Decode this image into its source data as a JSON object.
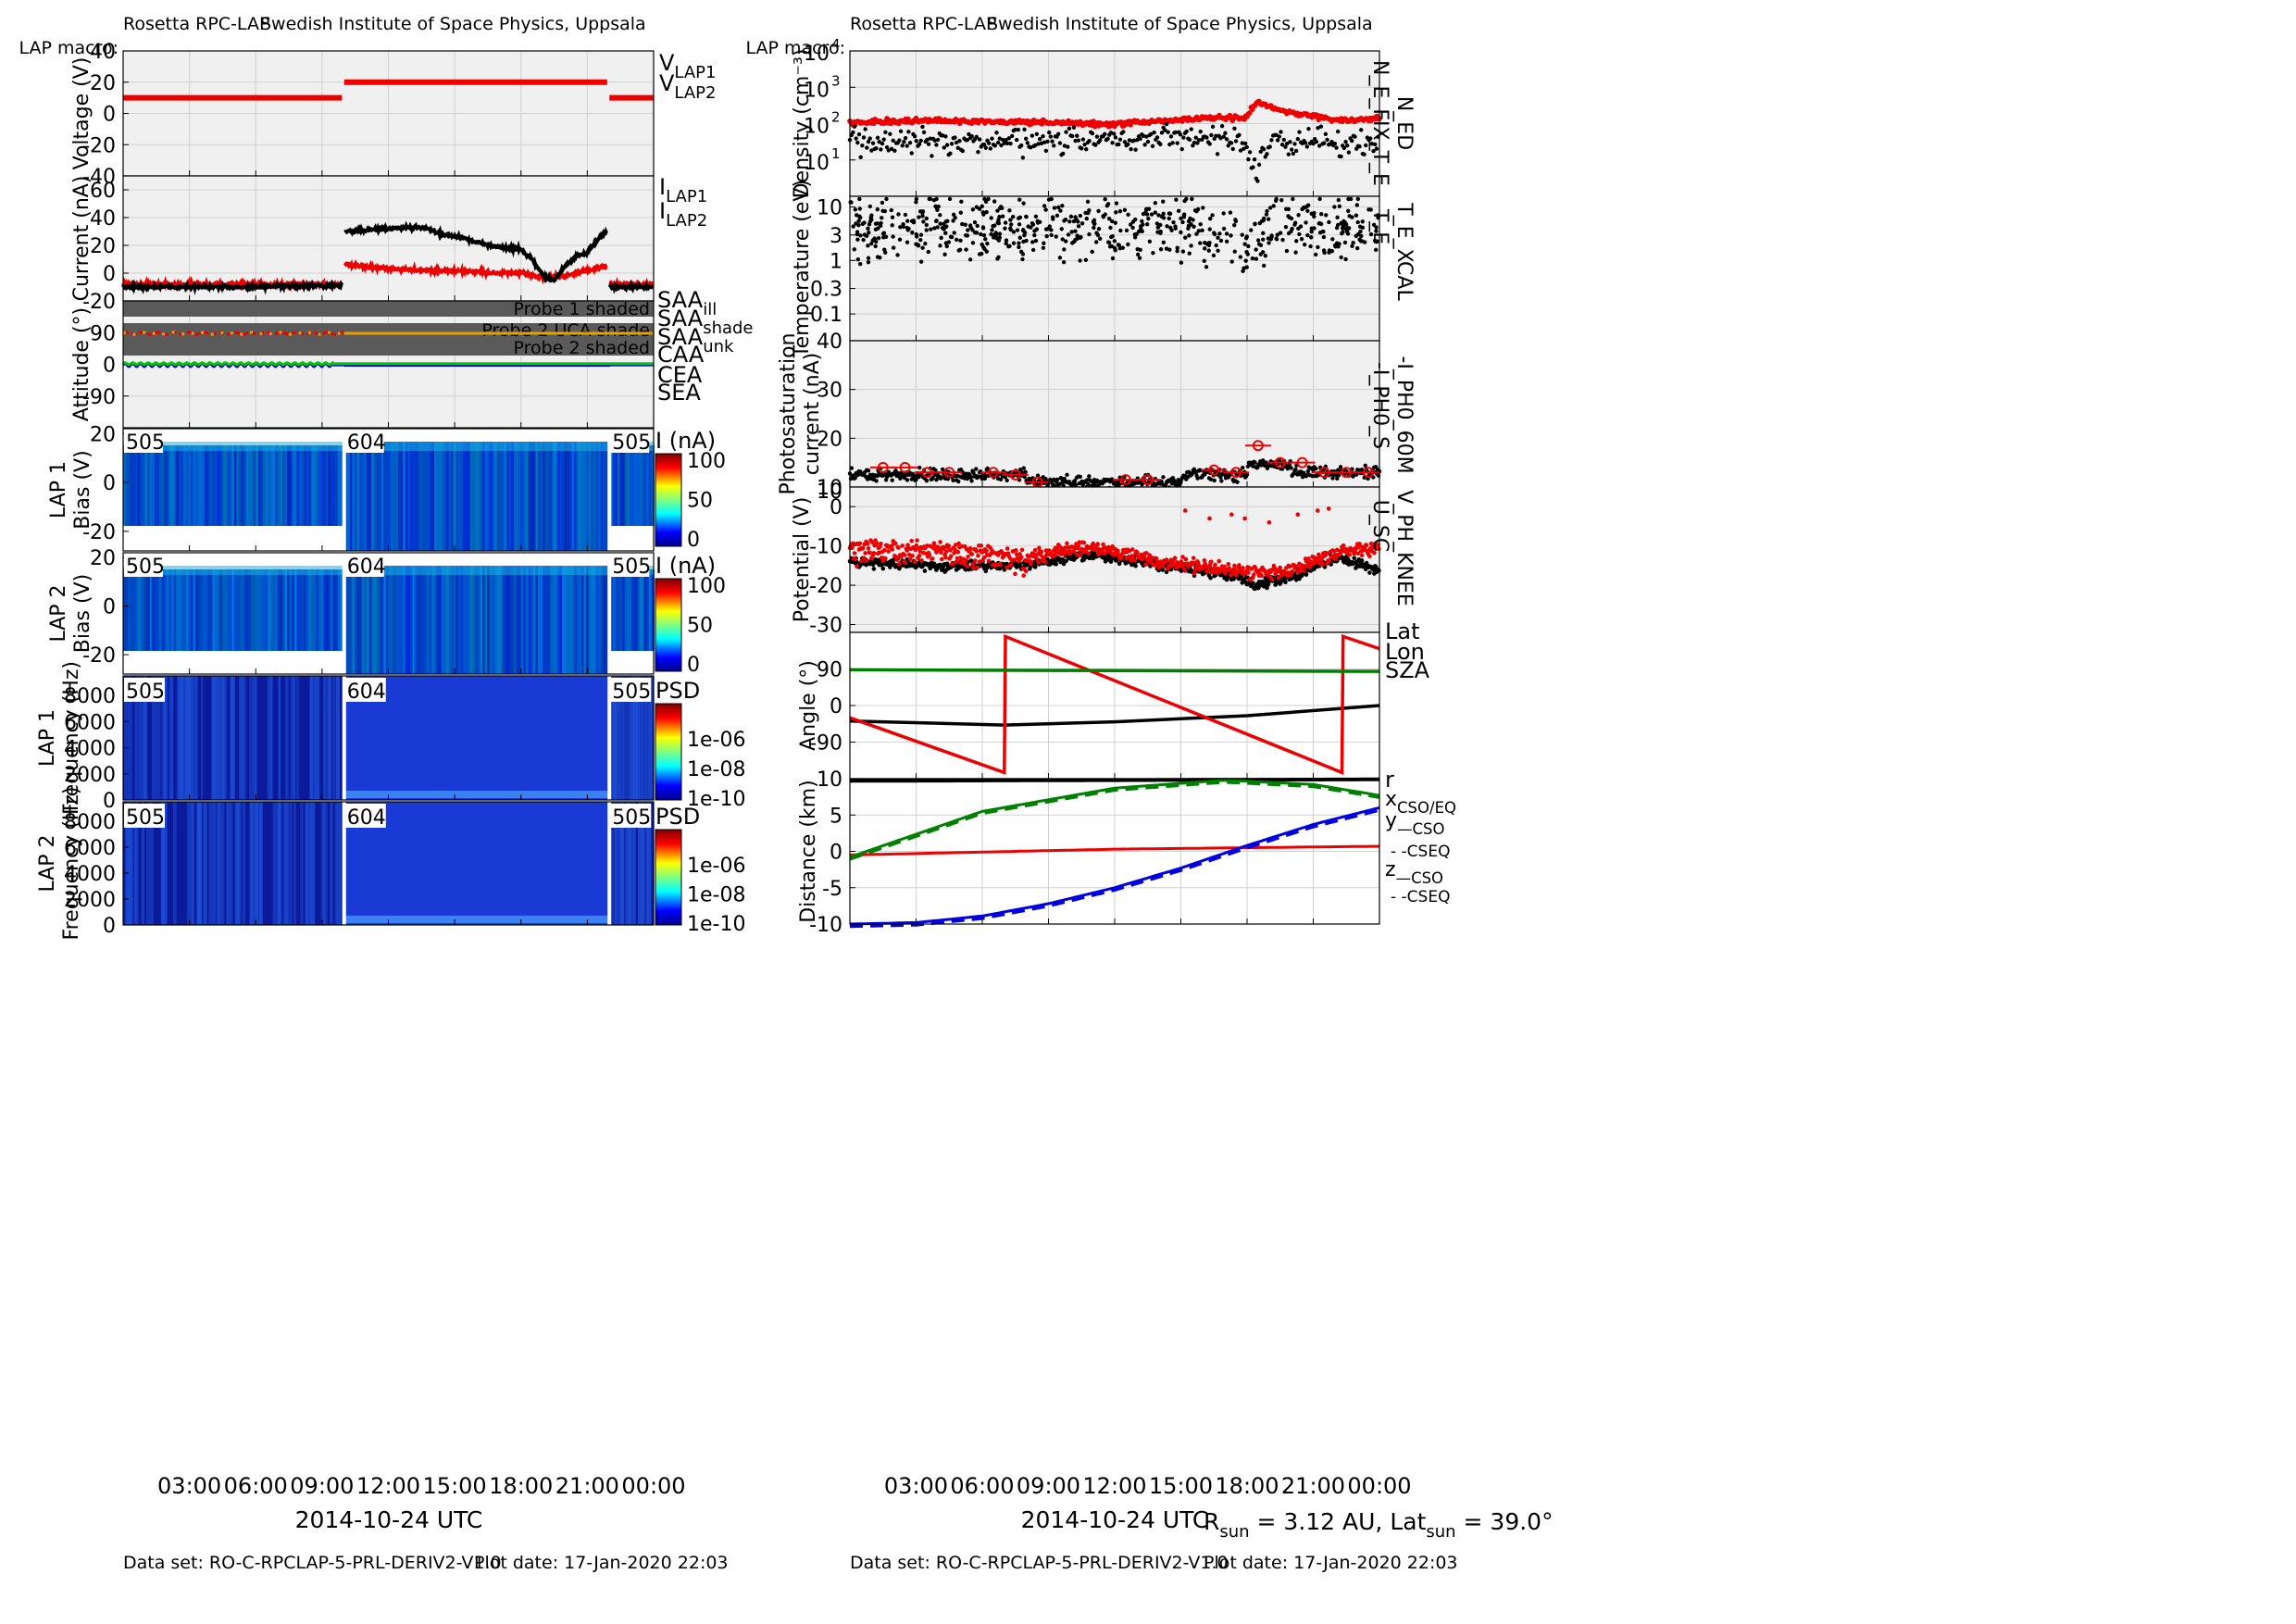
{
  "header": {
    "instrument": "Rosetta RPC-LAP",
    "institute": "Swedish Institute of Space Physics, Uppsala",
    "macro_label": "LAP macro:",
    "macros": [
      "505",
      "604",
      "505"
    ]
  },
  "footer": {
    "dataset": "Data set: RO-C-RPCLAP-5-PRL-DERIV2-V1.0",
    "plot_date": "Plot date: 17-Jan-2020 22:03",
    "date_label": "2014-10-24 UTC",
    "rsun_text": "3.12 AU",
    "latsun_text": "39.0°"
  },
  "time_ticks": [
    "03:00",
    "06:00",
    "09:00",
    "12:00",
    "15:00",
    "18:00",
    "21:00",
    "00:00"
  ],
  "colors": {
    "black": "#000000",
    "red": "#ee0000",
    "orange": "#e6a000",
    "magenta": "#d000d0",
    "blue": "#0000e0",
    "green": "#00cc00",
    "dkgreen": "#008000",
    "shade": "#5a5a5a",
    "panel_bg": "#f0f0f0"
  },
  "chart_data": [
    {
      "type": "line",
      "id": "voltage",
      "ylabel": "Voltage (V)",
      "ylim": [
        -40,
        40
      ],
      "yticks": [
        "40",
        "20",
        "0",
        "-20",
        "-40"
      ],
      "legend": [
        {
          "label": "V",
          "sub": "LAP1",
          "color": "#000000"
        },
        {
          "label": "V",
          "sub": "LAP2",
          "color": "#ee0000"
        }
      ],
      "series": [
        {
          "name": "V_LAP2",
          "segments": [
            [
              [
                0,
                10
              ],
              [
                9.9,
                10
              ]
            ],
            [
              [
                10.0,
                20
              ],
              [
                21.9,
                20
              ]
            ],
            [
              [
                22.0,
                10
              ],
              [
                24,
                10
              ]
            ]
          ]
        }
      ]
    },
    {
      "type": "line",
      "id": "current",
      "ylabel": "Current (nA)",
      "ylim": [
        -20,
        70
      ],
      "yticks": [
        "60",
        "40",
        "20",
        "0",
        "-20"
      ],
      "legend": [
        {
          "label": "I",
          "sub": "LAP1",
          "color": "#000000"
        },
        {
          "label": "I",
          "sub": "LAP2",
          "color": "#ee0000"
        }
      ],
      "series": [
        {
          "name": "I_LAP1",
          "points": [
            [
              0,
              -10
            ],
            [
              5,
              -10
            ],
            [
              9.9,
              -9
            ],
            [
              10,
              30
            ],
            [
              12,
              32
            ],
            [
              13.5,
              33
            ],
            [
              14.5,
              28
            ],
            [
              15.5,
              25
            ],
            [
              16.5,
              20
            ],
            [
              17.5,
              18
            ],
            [
              18,
              17
            ],
            [
              18.5,
              10
            ],
            [
              19,
              -2
            ],
            [
              19.5,
              -5
            ],
            [
              20,
              5
            ],
            [
              20.5,
              12
            ],
            [
              21,
              15
            ],
            [
              21.5,
              25
            ],
            [
              21.9,
              30
            ],
            [
              22,
              -10
            ],
            [
              24,
              -10
            ]
          ]
        },
        {
          "name": "I_LAP2",
          "points": [
            [
              0,
              -8
            ],
            [
              5,
              -8
            ],
            [
              9.9,
              -8
            ],
            [
              10,
              6
            ],
            [
              12,
              3
            ],
            [
              14,
              2
            ],
            [
              16,
              1
            ],
            [
              17,
              0
            ],
            [
              18,
              0
            ],
            [
              19,
              -3
            ],
            [
              20,
              -2
            ],
            [
              21,
              2
            ],
            [
              21.9,
              5
            ],
            [
              22,
              -8
            ],
            [
              24,
              -8
            ]
          ]
        }
      ]
    },
    {
      "type": "line",
      "id": "attitude",
      "ylabel": "Attitude (°)",
      "ylim": [
        -180,
        180
      ],
      "bands": [
        "Probe 1 shaded",
        "Probe 2 UCA shade",
        "Probe 2 shaded"
      ],
      "legend": [
        {
          "label": "SAA",
          "sub": "ill",
          "color": "#ee0000"
        },
        {
          "label": "SAA",
          "sub": "shade",
          "color": "#e6a000"
        },
        {
          "label": "SAA",
          "sub": "unk",
          "color": "#d000d0"
        },
        {
          "label": "CAA",
          "sub": "",
          "color": "#0000e0"
        },
        {
          "label": "CEA",
          "sub": "",
          "color": "#00cc00"
        },
        {
          "label": "SEA",
          "sub": "",
          "color": "#000000"
        }
      ],
      "yticks": [
        "90",
        "0",
        "-90"
      ]
    },
    {
      "type": "heatmap",
      "id": "lap1_bias",
      "ylabel1": "LAP 1",
      "ylabel2": "Bias (V)",
      "cbar_label": "I (nA)",
      "cbar_ticks": [
        "100",
        "50",
        "0"
      ],
      "yticks": [
        "20",
        "0",
        "-20"
      ]
    },
    {
      "type": "heatmap",
      "id": "lap2_bias",
      "ylabel1": "LAP 2",
      "ylabel2": "Bias (V)",
      "cbar_label": "I (nA)",
      "cbar_ticks": [
        "100",
        "50",
        "0"
      ],
      "yticks": [
        "20",
        "0",
        "-20"
      ]
    },
    {
      "type": "heatmap",
      "id": "lap1_psd",
      "ylabel1": "LAP 1",
      "ylabel2": "Frequency (Hz)",
      "cbar_label": "PSD",
      "cbar_ticks": [
        "1e-06",
        "1e-08",
        "1e-10"
      ],
      "yticks": [
        "8000",
        "6000",
        "4000",
        "2000",
        "0"
      ]
    },
    {
      "type": "heatmap",
      "id": "lap2_psd",
      "ylabel1": "LAP 2",
      "ylabel2": "Frequency (Hz)",
      "cbar_label": "PSD",
      "cbar_ticks": [
        "1e-06",
        "1e-08",
        "1e-10"
      ],
      "yticks": [
        "8000",
        "6000",
        "4000",
        "2000",
        "0"
      ]
    },
    {
      "type": "scatter",
      "id": "density",
      "ylabel": "Density (cm⁻³)",
      "scale": "log",
      "ylim": [
        1,
        10000
      ],
      "right_labels": [
        {
          "text": "N_ED",
          "color": "#ee0000"
        },
        {
          "text": "N_E_FIX_T_E",
          "color": "#000000"
        }
      ],
      "series": [
        {
          "name": "N_ED",
          "points": [
            [
              0,
              110
            ],
            [
              4,
              120
            ],
            [
              8,
              110
            ],
            [
              12,
              95
            ],
            [
              15,
              130
            ],
            [
              18,
              150
            ],
            [
              18.5,
              400
            ],
            [
              19,
              300
            ],
            [
              20,
              200
            ],
            [
              22,
              120
            ],
            [
              24,
              140
            ]
          ]
        },
        {
          "name": "N_E_FIX_T_E",
          "points": [
            [
              0,
              35
            ],
            [
              4,
              30
            ],
            [
              8,
              30
            ],
            [
              12,
              35
            ],
            [
              15,
              40
            ],
            [
              17,
              45
            ],
            [
              18,
              20
            ],
            [
              18.5,
              2
            ],
            [
              19,
              30
            ],
            [
              22,
              35
            ],
            [
              24,
              20
            ]
          ]
        }
      ]
    },
    {
      "type": "scatter",
      "id": "temperature",
      "ylabel": "Temperature (eV)",
      "scale": "log",
      "yticks": [
        "10",
        "3",
        "1",
        "0.3",
        "0.1"
      ],
      "right_labels": [
        {
          "text": "T_E_XCAL",
          "color": "#ee0000"
        },
        {
          "text": "T_E",
          "color": "#000000"
        }
      ]
    },
    {
      "type": "scatter",
      "id": "photosat",
      "ylabel1": "Photosaturation",
      "ylabel2": "current (nA)",
      "ylim": [
        10,
        40
      ],
      "yticks": [
        "40",
        "30",
        "20",
        "10"
      ],
      "right_labels": [
        {
          "text": "-I_PH0_60M",
          "color": "#ee0000"
        },
        {
          "text": "-I_PH0_S",
          "color": "#000000"
        }
      ],
      "series": [
        {
          "name": "-I_PH0_60M",
          "points": [
            [
              1.5,
              14
            ],
            [
              2.5,
              14
            ],
            [
              3.5,
              13
            ],
            [
              4.5,
              13
            ],
            [
              6.5,
              13
            ],
            [
              7.5,
              12.5
            ],
            [
              8.5,
              11
            ],
            [
              12.5,
              11.5
            ],
            [
              13.5,
              11.5
            ],
            [
              16.5,
              13.5
            ],
            [
              17.5,
              13
            ],
            [
              18.5,
              18.5
            ],
            [
              19.5,
              15
            ],
            [
              20.5,
              15
            ],
            [
              21.5,
              13
            ],
            [
              22.5,
              13
            ],
            [
              23.5,
              13
            ]
          ]
        }
      ]
    },
    {
      "type": "scatter",
      "id": "potential",
      "ylabel": "Potential (V)",
      "ylim": [
        -32,
        5
      ],
      "yticks": [
        "0",
        "-10",
        "-20",
        "-30"
      ],
      "right_labels": [
        {
          "text": "V_PH_KNEE",
          "color": "#ee0000"
        },
        {
          "text": "U_SC",
          "color": "#000000"
        }
      ],
      "series": [
        {
          "name": "V_PH_KNEE",
          "points": [
            [
              0,
              -10
            ],
            [
              4,
              -10
            ],
            [
              8,
              -13
            ],
            [
              11,
              -10
            ],
            [
              14,
              -14
            ],
            [
              17,
              -16
            ],
            [
              18.5,
              -17
            ],
            [
              20,
              -16
            ],
            [
              22,
              -12
            ],
            [
              24,
              -10
            ]
          ]
        },
        {
          "name": "U_SC",
          "points": [
            [
              0,
              -14
            ],
            [
              4,
              -15
            ],
            [
              8,
              -15
            ],
            [
              11,
              -12
            ],
            [
              14,
              -15
            ],
            [
              17,
              -17
            ],
            [
              18.5,
              -20
            ],
            [
              20,
              -18
            ],
            [
              22,
              -13
            ],
            [
              24,
              -16
            ]
          ]
        }
      ]
    },
    {
      "type": "line",
      "id": "angle",
      "ylabel": "Angle (°)",
      "ylim": [
        -180,
        180
      ],
      "yticks": [
        "90",
        "0",
        "-90"
      ],
      "right_labels": [
        {
          "text": "Lat",
          "color": "#000000"
        },
        {
          "text": "Lon",
          "color": "#ee0000"
        },
        {
          "text": "SZA",
          "color": "#008000"
        }
      ],
      "series": [
        {
          "name": "Lat",
          "points": [
            [
              0,
              -38
            ],
            [
              7,
              -48
            ],
            [
              12,
              -40
            ],
            [
              18,
              -25
            ],
            [
              24,
              0
            ]
          ]
        },
        {
          "name": "Lon",
          "points": [
            [
              0,
              -30
            ],
            [
              7,
              -165
            ],
            [
              7.05,
              170
            ],
            [
              22.3,
              -165
            ],
            [
              22.35,
              170
            ],
            [
              24,
              140
            ]
          ]
        },
        {
          "name": "SZA",
          "points": [
            [
              0,
              88
            ],
            [
              12,
              86
            ],
            [
              24,
              84
            ]
          ]
        }
      ]
    },
    {
      "type": "line",
      "id": "distance",
      "ylabel": "Distance (km)",
      "ylim": [
        -10,
        10
      ],
      "yticks": [
        "10",
        "5",
        "0",
        "-5",
        "-10"
      ],
      "right_labels": [
        {
          "text": "r",
          "color": "#000000"
        },
        {
          "text": "x",
          "sub": "CSO/EQ",
          "color": "#ee0000"
        },
        {
          "text": "y",
          "sub": "—CSO",
          "color": "#008000"
        },
        {
          "text": "- -CSEQ",
          "color": "#008000"
        },
        {
          "text": "z",
          "sub": "—CSO",
          "color": "#0000e0"
        },
        {
          "text": "- -CSEQ",
          "color": "#0000e0"
        }
      ],
      "series": [
        {
          "name": "r",
          "points": [
            [
              0,
              9.7
            ],
            [
              24,
              9.9
            ]
          ]
        },
        {
          "name": "x",
          "points": [
            [
              0,
              -0.5
            ],
            [
              12,
              0.3
            ],
            [
              24,
              0.7
            ]
          ]
        },
        {
          "name": "y",
          "points": [
            [
              0,
              -0.8
            ],
            [
              6,
              5.5
            ],
            [
              12,
              8.7
            ],
            [
              17,
              9.8
            ],
            [
              21,
              9.2
            ],
            [
              24,
              7.7
            ]
          ]
        },
        {
          "name": "z",
          "points": [
            [
              0,
              -10
            ],
            [
              3,
              -9.8
            ],
            [
              6,
              -8.9
            ],
            [
              9,
              -7.2
            ],
            [
              12,
              -5
            ],
            [
              15,
              -2.3
            ],
            [
              18,
              0.8
            ],
            [
              21,
              3.7
            ],
            [
              24,
              6
            ]
          ]
        }
      ]
    }
  ]
}
